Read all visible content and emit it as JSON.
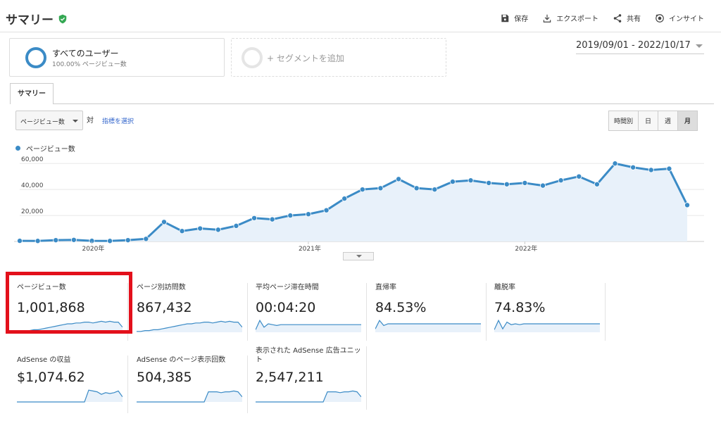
{
  "header": {
    "title": "サマリー",
    "actions": [
      {
        "icon": "save-icon",
        "label": "保存"
      },
      {
        "icon": "export-icon",
        "label": "エクスポート"
      },
      {
        "icon": "share-icon",
        "label": "共有"
      },
      {
        "icon": "insight-icon",
        "label": "インサイト"
      }
    ]
  },
  "segment": {
    "name": "すべてのユーザー",
    "sub": "100.00% ページビュー数"
  },
  "add_segment": {
    "label": "+ セグメントを追加"
  },
  "date_range": "2019/09/01 - 2022/10/17",
  "tab": {
    "label": "サマリー"
  },
  "controls": {
    "metric": "ページビュー数",
    "vs": "対",
    "select_metric": "指標を選択",
    "periods": [
      "時間別",
      "日",
      "週",
      "月"
    ],
    "active_period": "月"
  },
  "colors": {
    "accent": "#3b8bc6",
    "fill": "#e8f1fa",
    "highlight": "#e3101b",
    "verified": "#34a853"
  },
  "chart_data": {
    "type": "line",
    "series": [
      {
        "name": "ページビュー数",
        "values": [
          500,
          400,
          1000,
          1200,
          500,
          400,
          1000,
          2000,
          15000,
          8000,
          10000,
          9000,
          12000,
          18000,
          17000,
          20000,
          21000,
          24000,
          33000,
          40000,
          41000,
          48000,
          41000,
          40000,
          46000,
          47000,
          45000,
          44000,
          45000,
          43000,
          47000,
          50000,
          44000,
          60000,
          57000,
          55000,
          56000,
          28000
        ]
      }
    ],
    "x_ticks": [
      "2020年",
      "2021年",
      "2022年"
    ],
    "y_ticks": [
      "20,000",
      "40,000",
      "60,000"
    ],
    "ylim": [
      0,
      65000
    ],
    "grid": true
  },
  "metrics": [
    {
      "label": "ページビュー数",
      "value": "1,001,868",
      "trend": [
        1,
        1,
        2,
        2,
        3,
        3,
        4,
        5,
        6,
        7,
        8,
        9,
        10,
        10,
        11,
        11,
        12,
        12,
        11,
        12,
        13,
        12,
        13,
        12,
        12,
        6
      ]
    },
    {
      "label": "ページ別訪問数",
      "value": "867,432",
      "trend": [
        1,
        1,
        2,
        2,
        3,
        3,
        4,
        5,
        6,
        7,
        8,
        9,
        10,
        10,
        11,
        11,
        12,
        12,
        11,
        12,
        13,
        12,
        13,
        12,
        12,
        6
      ]
    },
    {
      "label": "平均ページ滞在時間",
      "value": "00:04:20",
      "trend": [
        3,
        14,
        6,
        10,
        9,
        8,
        9,
        9,
        9,
        9,
        9,
        9,
        9,
        9,
        9,
        9,
        9,
        9,
        9,
        9,
        9,
        9,
        9,
        9,
        9,
        9
      ]
    },
    {
      "label": "直帰率",
      "value": "84.53%",
      "trend": [
        4,
        14,
        8,
        10,
        10,
        10,
        10,
        10,
        10,
        10,
        10,
        10,
        10,
        10,
        10,
        10,
        10,
        10,
        10,
        10,
        10,
        10,
        10,
        10,
        10,
        10
      ]
    },
    {
      "label": "離脱率",
      "value": "74.83%",
      "trend": [
        3,
        14,
        4,
        12,
        9,
        10,
        9,
        10,
        10,
        10,
        10,
        10,
        10,
        10,
        10,
        10,
        10,
        10,
        10,
        10,
        10,
        10,
        10,
        10,
        10,
        10
      ]
    },
    {
      "label": "AdSense の収益",
      "value": "$1,074.62",
      "trend": [
        0,
        0,
        0,
        0,
        0,
        0,
        0,
        0,
        0,
        0,
        0,
        0,
        0,
        0,
        0,
        0,
        0,
        14,
        13,
        12,
        9,
        11,
        10,
        11,
        13,
        6
      ]
    },
    {
      "label": "AdSense のページ表示回数",
      "value": "504,385",
      "trend": [
        0,
        0,
        0,
        0,
        0,
        0,
        0,
        0,
        0,
        0,
        0,
        0,
        0,
        0,
        0,
        0,
        0,
        12,
        12,
        12,
        11,
        12,
        12,
        13,
        12,
        6
      ]
    },
    {
      "label": "表示された AdSense 広告ユニット",
      "value": "2,547,211",
      "trend": [
        0,
        0,
        0,
        0,
        0,
        0,
        0,
        0,
        0,
        0,
        0,
        0,
        0,
        0,
        0,
        0,
        0,
        12,
        12,
        12,
        11,
        12,
        12,
        13,
        12,
        6
      ]
    }
  ]
}
